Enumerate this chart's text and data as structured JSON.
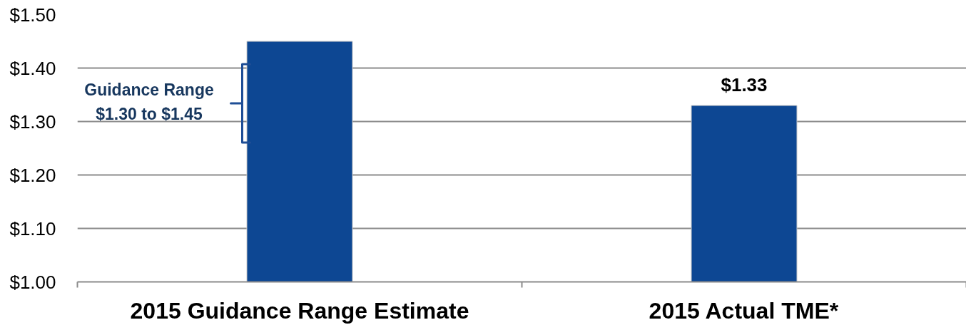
{
  "chart_data": {
    "type": "bar",
    "categories": [
      "2015 Guidance Range Estimate",
      "2015 Actual TME*"
    ],
    "values": [
      1.45,
      1.33
    ],
    "color": "#0d4793",
    "value_labels": [
      null,
      "$1.33"
    ],
    "ylim": [
      1.0,
      1.5
    ],
    "yticks": [
      {
        "value": 1.0,
        "label": "$1.00"
      },
      {
        "value": 1.1,
        "label": "$1.10"
      },
      {
        "value": 1.2,
        "label": "$1.20"
      },
      {
        "value": 1.3,
        "label": "$1.30"
      },
      {
        "value": 1.4,
        "label": "$1.40"
      },
      {
        "value": 1.5,
        "label": "$1.50"
      }
    ],
    "grid": "y",
    "annotations": [
      "Guidance Range\n$1.30 to $1.45"
    ]
  }
}
